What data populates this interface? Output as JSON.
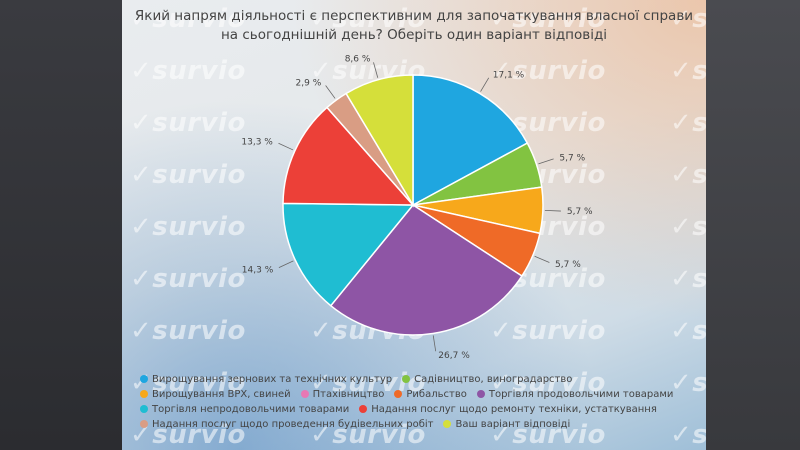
{
  "watermark": "survio",
  "chart_data": {
    "type": "pie",
    "title": "Який напрям діяльності є перспективним для започаткування власної справи на сьогоднішній день? Оберіть один варіант відповіді",
    "title_lines": [
      "Який напрям діяльності є перспективним для започаткування власної справи",
      "на сьогоднішній день? Оберіть один варіант відповіді"
    ],
    "legend_position": "bottom",
    "slices": [
      {
        "label": "Вирощування зернових та технічних культур",
        "value": 17.1,
        "value_label": "17,1 %",
        "color": "#1fa6e0"
      },
      {
        "label": "Садівництво, виноградарство",
        "value": 5.7,
        "value_label": "5,7 %",
        "color": "#82c341"
      },
      {
        "label": "Вирощування ВРХ, свиней",
        "value": 5.7,
        "value_label": "5,7 %",
        "color": "#f7a81b"
      },
      {
        "label": "Птахівництво",
        "value": 0,
        "value_label": "",
        "color": "#e778b4"
      },
      {
        "label": "Рибальство",
        "value": 5.7,
        "value_label": "5,7 %",
        "color": "#ef6a27"
      },
      {
        "label": "Торгівля продовольчими товарами",
        "value": 26.7,
        "value_label": "26,7 %",
        "color": "#8e55a5"
      },
      {
        "label": "Торгівля непродовольчими товарами",
        "value": 14.3,
        "value_label": "14,3 %",
        "color": "#1fbdd2"
      },
      {
        "label": "Надання послуг щодо ремонту техніки, устаткування",
        "value": 13.3,
        "value_label": "13,3 %",
        "color": "#ec4038"
      },
      {
        "label": "Надання послуг щодо проведення будівельних робіт",
        "value": 2.9,
        "value_label": "2,9 %",
        "color": "#d99d84"
      },
      {
        "label": "Ваш варіант відповіді",
        "value": 8.6,
        "value_label": "8,6 %",
        "color": "#d5df3a"
      }
    ]
  }
}
